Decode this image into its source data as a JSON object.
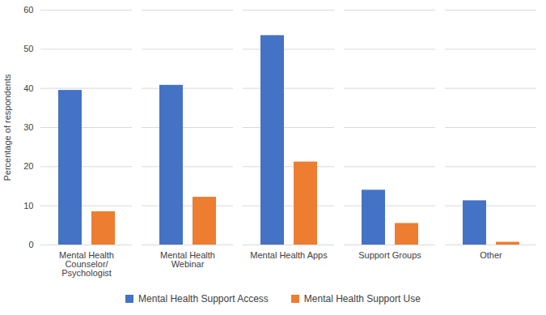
{
  "chart_data": {
    "type": "bar",
    "y_label": "Percentage of respondents",
    "categories": [
      "Mental Health Counselor/ Psychologist",
      "Mental Health Webinar",
      "Mental Health Apps",
      "Support Groups",
      "Other"
    ],
    "series": [
      {
        "name": "Mental Health Support Access",
        "color": "#4472c4",
        "values": [
          39.5,
          40.8,
          53.5,
          14.0,
          11.3
        ]
      },
      {
        "name": "Mental Health Support Use",
        "color": "#ed7d31",
        "values": [
          8.5,
          12.2,
          21.2,
          5.5,
          0.7
        ]
      }
    ],
    "ylim": [
      0,
      60
    ],
    "yticks": [
      0,
      10,
      20,
      30,
      40,
      50,
      60
    ],
    "grid": true,
    "legend": "bottom"
  }
}
